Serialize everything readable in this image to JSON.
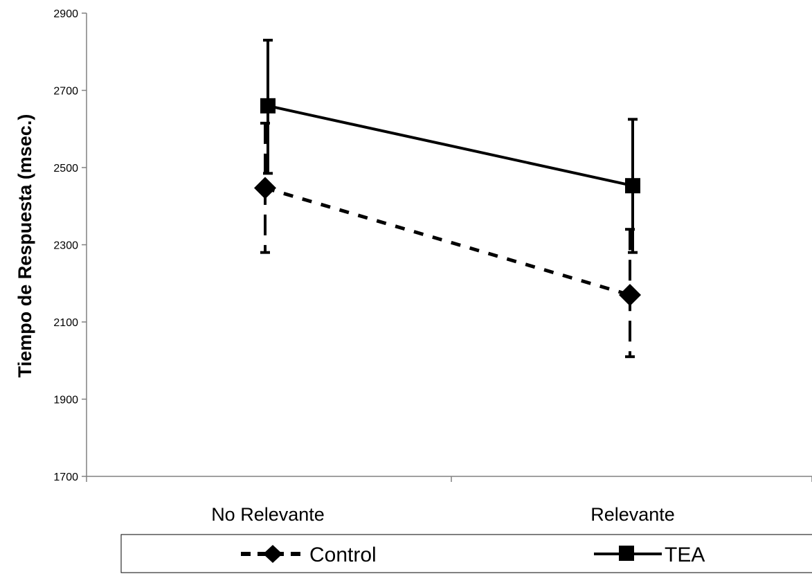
{
  "chart_data": {
    "type": "line",
    "title": "",
    "xlabel": "",
    "ylabel": "Tiempo de Respuesta (msec.)",
    "categories": [
      "No Relevante",
      "Relevante"
    ],
    "ylim": [
      1700,
      2900
    ],
    "yticks": [
      1700,
      1900,
      2100,
      2300,
      2500,
      2700,
      2900
    ],
    "grid": false,
    "legend_position": "bottom",
    "series": [
      {
        "name": "Control",
        "marker": "diamond",
        "line_style": "dashed",
        "color": "#000000",
        "values": [
          2447,
          2170
        ],
        "error_low": [
          2280,
          2010
        ],
        "error_high": [
          2615,
          2340
        ]
      },
      {
        "name": "TEA",
        "marker": "square",
        "line_style": "solid",
        "color": "#000000",
        "values": [
          2660,
          2453
        ],
        "error_low": [
          2485,
          2280
        ],
        "error_high": [
          2830,
          2625
        ]
      }
    ]
  }
}
